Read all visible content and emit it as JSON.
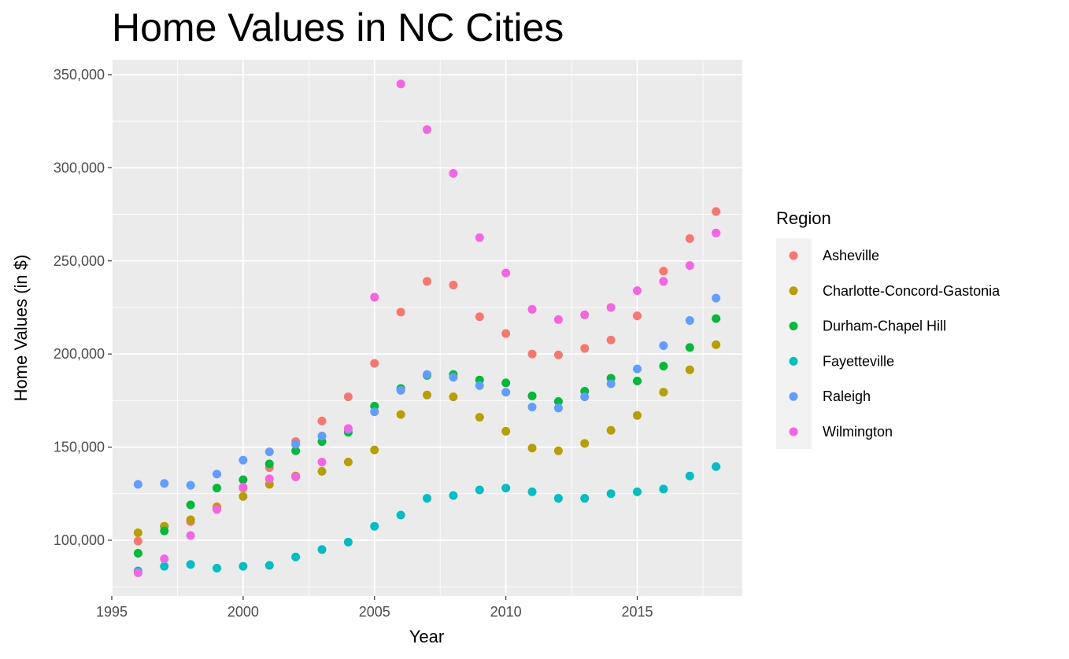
{
  "chart_data": {
    "type": "scatter",
    "title": "Home Values in NC Cities",
    "xlabel": "Year",
    "ylabel": "Home Values (in $)",
    "xlim": [
      1995,
      2019
    ],
    "ylim": [
      70000,
      358000
    ],
    "x_ticks": [
      1995,
      2000,
      2005,
      2010,
      2015
    ],
    "x_tick_labels": [
      "1995",
      "2000",
      "2005",
      "2010",
      "2015"
    ],
    "y_ticks": [
      100000,
      150000,
      200000,
      250000,
      300000,
      350000
    ],
    "y_tick_labels": [
      "100,000",
      "150,000",
      "200,000",
      "250,000",
      "300,000",
      "350,000"
    ],
    "grid": true,
    "legend": {
      "title": "Region",
      "position": "right"
    },
    "x": [
      1996,
      1997,
      1998,
      1999,
      2000,
      2001,
      2002,
      2003,
      2004,
      2005,
      2006,
      2007,
      2008,
      2009,
      2010,
      2011,
      2012,
      2013,
      2014,
      2015,
      2016,
      2017,
      2018
    ],
    "series": [
      {
        "name": "Asheville",
        "color": "#F8766D",
        "values": [
          99500,
          107500,
          110000,
          118000,
          128000,
          139000,
          153000,
          164000,
          177000,
          195000,
          222500,
          239000,
          237000,
          220000,
          211000,
          200000,
          199500,
          203000,
          207500,
          220500,
          244500,
          262000,
          276500
        ]
      },
      {
        "name": "Charlotte-Concord-Gastonia",
        "color": "#B79F00",
        "values": [
          104000,
          107500,
          111000,
          117500,
          123500,
          130000,
          134500,
          137000,
          142000,
          148500,
          167500,
          178000,
          177000,
          166000,
          158500,
          149500,
          148000,
          152000,
          159000,
          167000,
          179500,
          191500,
          205000
        ]
      },
      {
        "name": "Durham-Chapel Hill",
        "color": "#00BA38",
        "values": [
          93000,
          105000,
          119000,
          128000,
          132500,
          141000,
          148000,
          153000,
          158000,
          172000,
          181500,
          188500,
          189000,
          186000,
          184500,
          177500,
          174500,
          180000,
          187000,
          185500,
          193500,
          203500,
          219000
        ]
      },
      {
        "name": "Fayetteville",
        "color": "#00BFC4",
        "values": [
          83500,
          86000,
          87000,
          85000,
          86000,
          86500,
          91000,
          95000,
          99000,
          107500,
          113500,
          122500,
          124000,
          127000,
          128000,
          126000,
          122500,
          122500,
          125000,
          126000,
          127500,
          134500,
          139500
        ]
      },
      {
        "name": "Raleigh",
        "color": "#619CFF",
        "values": [
          130000,
          130500,
          129500,
          135500,
          143000,
          147500,
          151500,
          156000,
          159500,
          169000,
          180500,
          189000,
          187500,
          183000,
          179500,
          171500,
          171000,
          177000,
          184000,
          192000,
          204500,
          218000,
          230000
        ]
      },
      {
        "name": "Wilmington",
        "color": "#F564E3",
        "values": [
          82500,
          90000,
          102500,
          116500,
          128500,
          133000,
          134000,
          142000,
          160000,
          230500,
          345000,
          320500,
          297000,
          262500,
          243500,
          224000,
          218500,
          221000,
          225000,
          234000,
          239000,
          247500,
          265000
        ]
      }
    ]
  }
}
